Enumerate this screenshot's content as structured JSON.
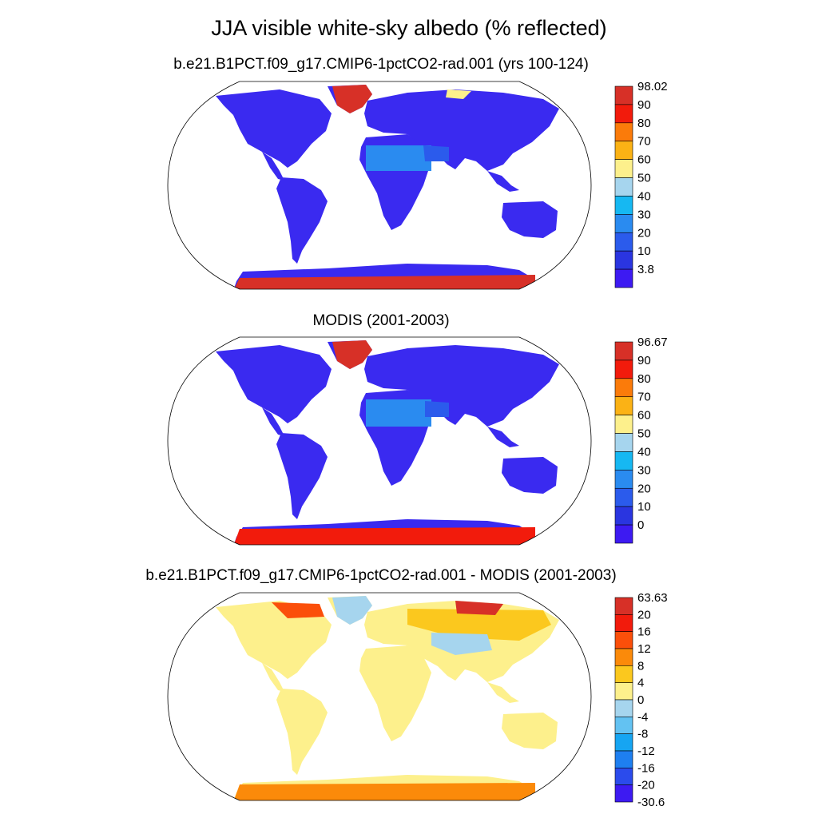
{
  "title": "JJA visible white-sky albedo (% reflected)",
  "panels": [
    {
      "title": "b.e21.B1PCT.f09_g17.CMIP6-1pctCO2-rad.001 (yrs 100-124)",
      "colorbar": {
        "labels": [
          "98.02",
          "90",
          "80",
          "70",
          "60",
          "50",
          "40",
          "30",
          "20",
          "10",
          "3.8"
        ],
        "colors": [
          "#d73027",
          "#f21b0c",
          "#fb7b0a",
          "#fbb215",
          "#fdf08c",
          "#a6d5ee",
          "#16b8f2",
          "#2a8bf0",
          "#2b5bec",
          "#2a35e0",
          "#3d1af2"
        ]
      }
    },
    {
      "title": "MODIS (2001-2003)",
      "colorbar": {
        "labels": [
          "96.67",
          "90",
          "80",
          "70",
          "60",
          "50",
          "40",
          "30",
          "20",
          "10",
          "0"
        ],
        "colors": [
          "#d73027",
          "#f21b0c",
          "#fb7b0a",
          "#fbb215",
          "#fdf08c",
          "#a6d5ee",
          "#16b8f2",
          "#2a8bf0",
          "#2b5bec",
          "#2a35e0",
          "#3d1af2"
        ]
      }
    },
    {
      "title": "b.e21.B1PCT.f09_g17.CMIP6-1pctCO2-rad.001 - MODIS (2001-2003)",
      "colorbar": {
        "labels": [
          "63.63",
          "20",
          "16",
          "12",
          "8",
          "4",
          "0",
          "-4",
          "-8",
          "-12",
          "-16",
          "-20",
          "-30.6"
        ],
        "colors": [
          "#d73027",
          "#f21b0c",
          "#fb4f0a",
          "#fb8a0a",
          "#fbc81e",
          "#fdf08c",
          "#a6d5ee",
          "#63c2f2",
          "#16a5f2",
          "#1e7ff0",
          "#2b4bec",
          "#3d1af2"
        ]
      }
    }
  ]
}
